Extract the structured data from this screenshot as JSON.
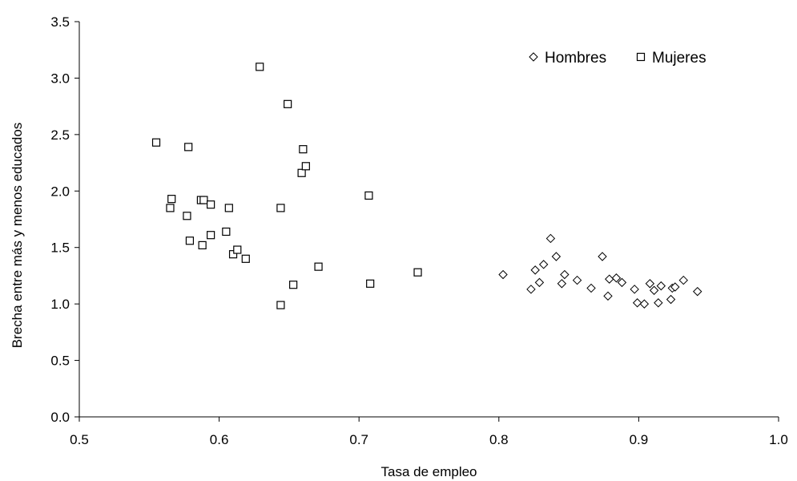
{
  "chart_data": {
    "type": "scatter",
    "title": "",
    "xlabel": "Tasa de empleo",
    "ylabel": "Brecha entre más y menos educados",
    "xlim": [
      0.5,
      1.0
    ],
    "ylim": [
      0.0,
      3.5
    ],
    "xticks": [
      0.5,
      0.6,
      0.7,
      0.8,
      0.9,
      1.0
    ],
    "xtick_labels": [
      "0.5",
      "0.6",
      "0.7",
      "0.8",
      "0.9",
      "1.0"
    ],
    "yticks": [
      0.0,
      0.5,
      1.0,
      1.5,
      2.0,
      2.5,
      3.0,
      3.5
    ],
    "ytick_labels": [
      "0.0",
      "0.5",
      "1.0",
      "1.5",
      "2.0",
      "2.5",
      "3.0",
      "3.5"
    ],
    "grid": false,
    "legend_position": "top-right",
    "colors": {
      "marker_stroke": "#000000",
      "marker_fill": "#ffffff",
      "axis": "#000000"
    },
    "series": [
      {
        "name": "Hombres",
        "marker": "diamond",
        "points": [
          [
            0.803,
            1.26
          ],
          [
            0.823,
            1.13
          ],
          [
            0.826,
            1.3
          ],
          [
            0.829,
            1.19
          ],
          [
            0.832,
            1.35
          ],
          [
            0.837,
            1.58
          ],
          [
            0.841,
            1.42
          ],
          [
            0.845,
            1.18
          ],
          [
            0.847,
            1.26
          ],
          [
            0.856,
            1.21
          ],
          [
            0.866,
            1.14
          ],
          [
            0.874,
            1.42
          ],
          [
            0.878,
            1.07
          ],
          [
            0.879,
            1.22
          ],
          [
            0.884,
            1.23
          ],
          [
            0.888,
            1.19
          ],
          [
            0.897,
            1.13
          ],
          [
            0.899,
            1.01
          ],
          [
            0.904,
            1.0
          ],
          [
            0.908,
            1.18
          ],
          [
            0.911,
            1.12
          ],
          [
            0.914,
            1.01
          ],
          [
            0.916,
            1.16
          ],
          [
            0.923,
            1.04
          ],
          [
            0.924,
            1.14
          ],
          [
            0.926,
            1.15
          ],
          [
            0.932,
            1.21
          ],
          [
            0.942,
            1.11
          ]
        ]
      },
      {
        "name": "Mujeres",
        "marker": "square",
        "points": [
          [
            0.555,
            2.43
          ],
          [
            0.565,
            1.85
          ],
          [
            0.566,
            1.93
          ],
          [
            0.577,
            1.78
          ],
          [
            0.578,
            2.39
          ],
          [
            0.579,
            1.56
          ],
          [
            0.587,
            1.92
          ],
          [
            0.588,
            1.52
          ],
          [
            0.589,
            1.92
          ],
          [
            0.594,
            1.61
          ],
          [
            0.594,
            1.88
          ],
          [
            0.605,
            1.64
          ],
          [
            0.607,
            1.85
          ],
          [
            0.61,
            1.44
          ],
          [
            0.613,
            1.48
          ],
          [
            0.619,
            1.4
          ],
          [
            0.629,
            3.1
          ],
          [
            0.644,
            1.85
          ],
          [
            0.644,
            0.99
          ],
          [
            0.649,
            2.77
          ],
          [
            0.653,
            1.17
          ],
          [
            0.659,
            2.16
          ],
          [
            0.66,
            2.37
          ],
          [
            0.662,
            2.22
          ],
          [
            0.671,
            1.33
          ],
          [
            0.707,
            1.96
          ],
          [
            0.708,
            1.18
          ],
          [
            0.742,
            1.28
          ]
        ]
      }
    ]
  }
}
